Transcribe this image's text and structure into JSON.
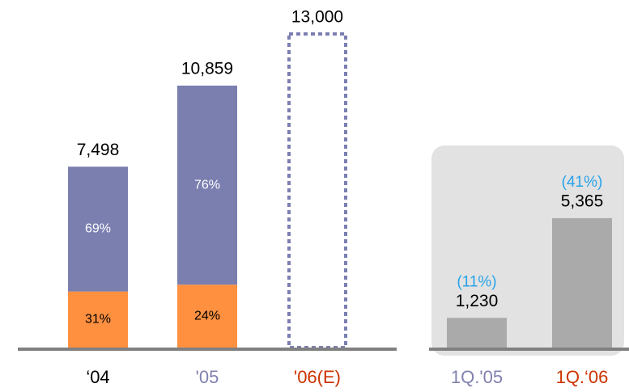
{
  "chart_data": {
    "type": "bar",
    "categories": [
      "‘04",
      "'05",
      "'06(E)",
      "1Q.'05",
      "1Q.‘06"
    ],
    "category_colors": [
      "#000000",
      "#8080b0",
      "#cc3300",
      "#8080b0",
      "#cc3300"
    ],
    "values": [
      7498,
      10859,
      13000,
      1230,
      5365
    ],
    "value_labels": [
      "7,498",
      "10,859",
      "13,000",
      "1,230",
      "5,365"
    ],
    "bar_colors": [
      null,
      null,
      null,
      "#aaaaaa",
      "#aaaaaa"
    ],
    "dashed": [
      false,
      false,
      true,
      false,
      false
    ],
    "dash_color": "#7b7fb0",
    "shares": [
      {
        "color": "#ff9040",
        "values": [
          31,
          24,
          null,
          null,
          null
        ],
        "value_labels": [
          "31%",
          "24%",
          null,
          null,
          null
        ],
        "label_color": "#000000"
      },
      {
        "color": "#7b7fb0",
        "values": [
          69,
          76,
          null,
          null,
          null
        ],
        "value_labels": [
          "69%",
          "76%",
          null,
          null,
          null
        ],
        "label_color": "#ffffff"
      }
    ],
    "growth": {
      "values": [
        null,
        null,
        null,
        11,
        41
      ],
      "value_labels": [
        null,
        null,
        null,
        "(11%)",
        "(41%)"
      ],
      "color": "#29a3e8"
    },
    "ylim": [
      0,
      13000
    ]
  }
}
